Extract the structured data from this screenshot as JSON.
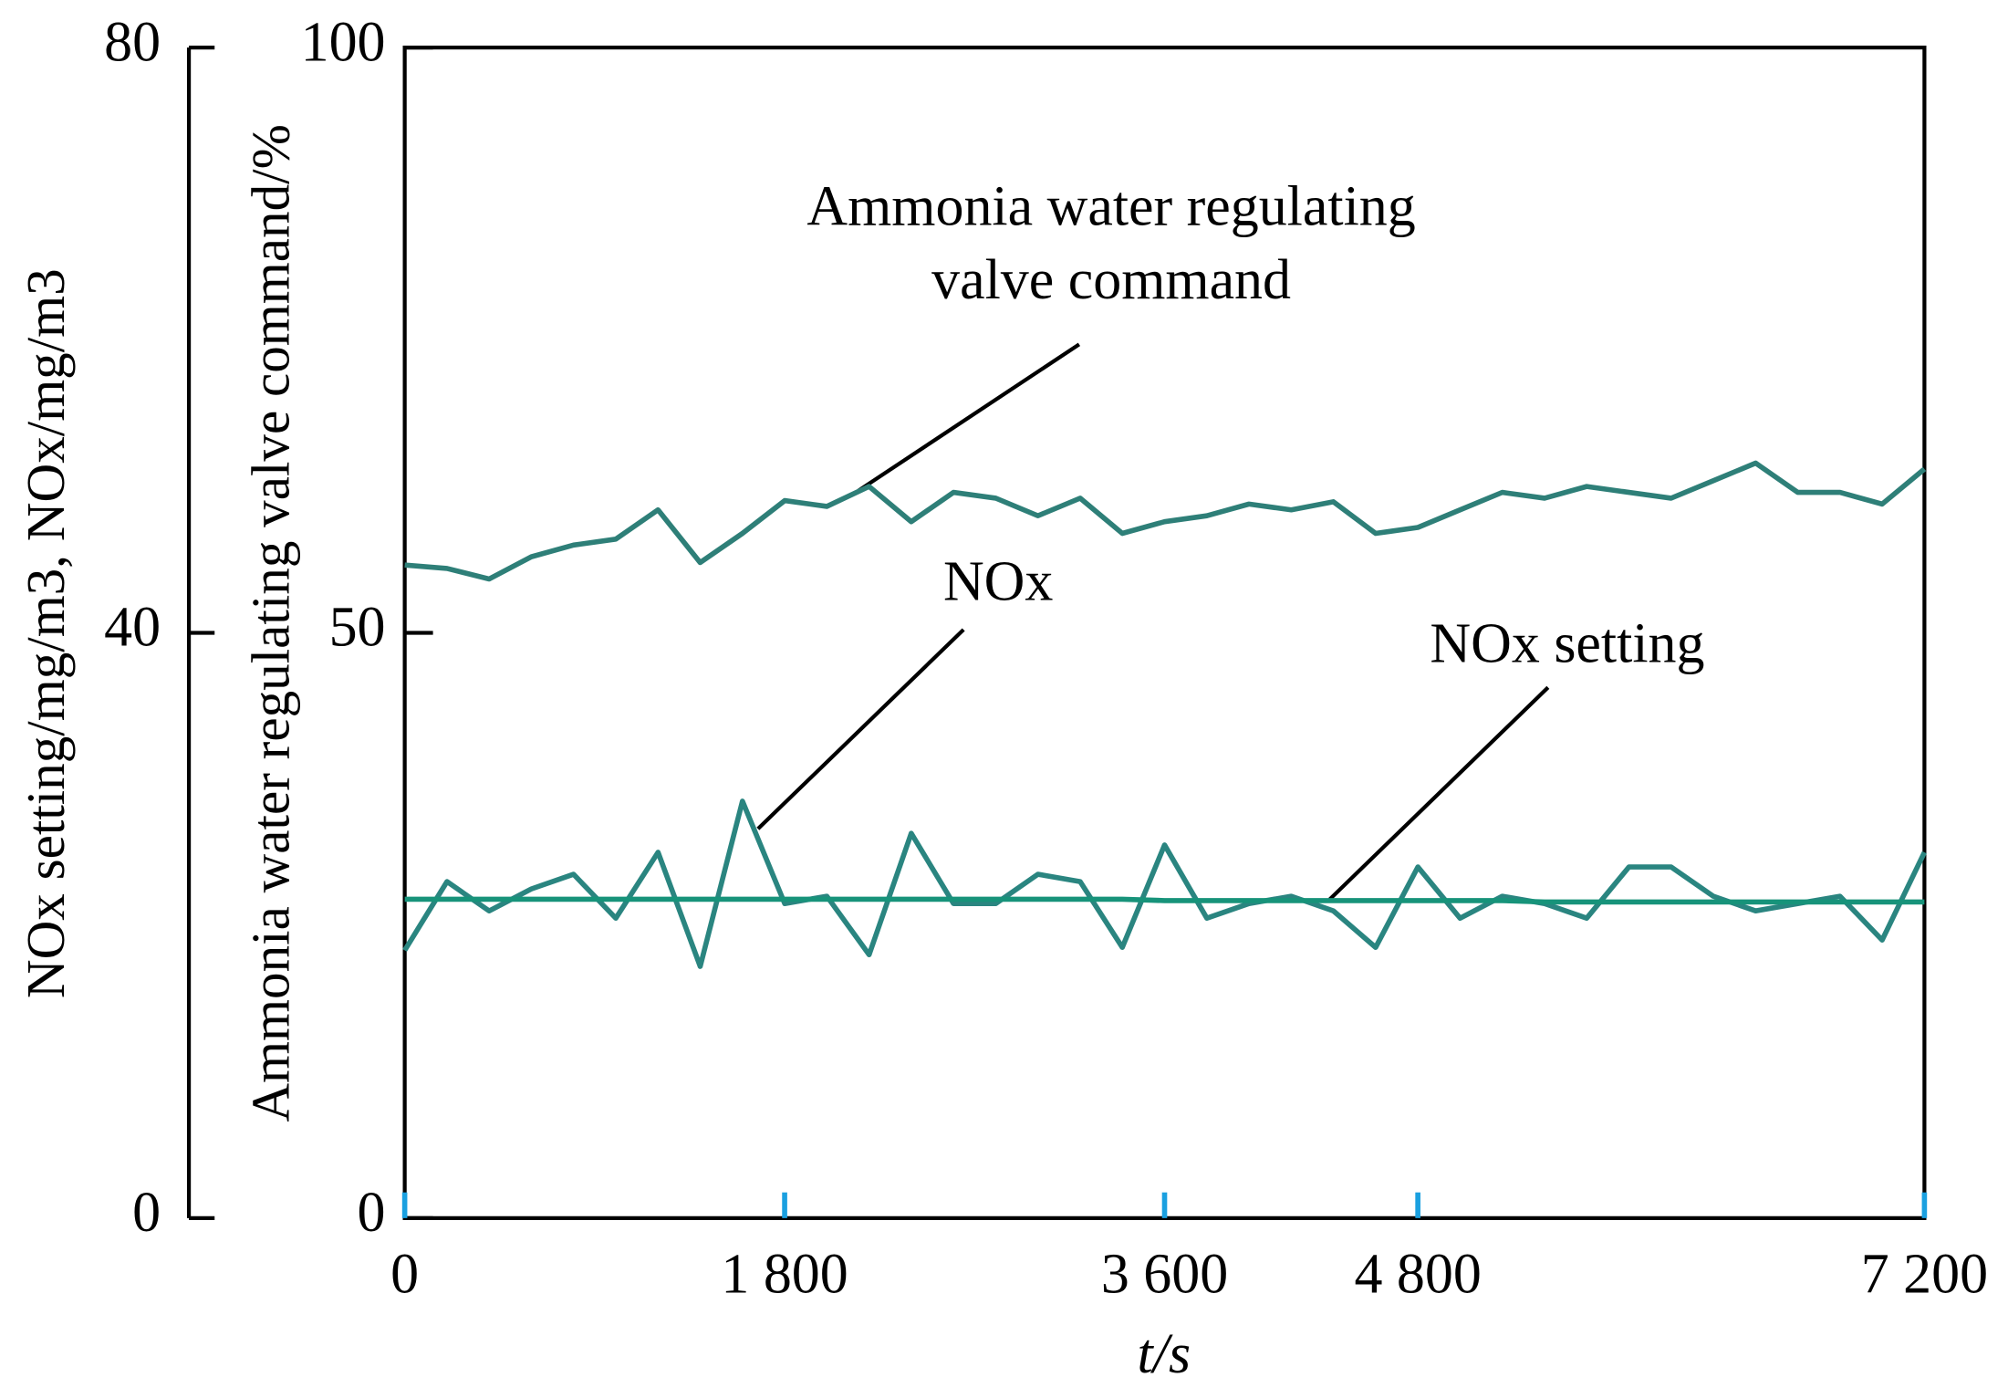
{
  "chart_data": {
    "type": "line",
    "x_label": "t/s",
    "y_label": "NOx setting/mg/m3, NOx/mg/m3",
    "y2_label": "Ammonia water regulating valve command/%",
    "x": [
      0,
      200,
      400,
      600,
      800,
      1000,
      1200,
      1400,
      1600,
      1800,
      2000,
      2200,
      2400,
      2600,
      2800,
      3000,
      3200,
      3400,
      3600,
      3800,
      4000,
      4200,
      4400,
      4600,
      4800,
      5000,
      5200,
      5400,
      5600,
      5800,
      6000,
      6200,
      6400,
      6600,
      6800,
      7000,
      7200
    ],
    "xlim": [
      0,
      7200
    ],
    "xticks": [
      0,
      {
        "value": 1800,
        "label": "1 800"
      },
      {
        "value": 3600,
        "label": "3 600"
      },
      {
        "value": 4800,
        "label": "4 800"
      },
      {
        "value": 7200,
        "label": "7 200"
      }
    ],
    "ylim": [
      0,
      80
    ],
    "yticks": [
      0,
      40,
      80
    ],
    "y2lim": [
      0,
      100
    ],
    "y2ticks": [
      0,
      50,
      100
    ],
    "series": [
      {
        "name": "Ammonia water regulating valve command",
        "color": "#2e7f78",
        "axis": "y2",
        "values": [
          55.8,
          55.5,
          54.6,
          56.5,
          57.5,
          58.0,
          60.5,
          56.0,
          58.5,
          61.3,
          60.8,
          62.5,
          59.5,
          62.0,
          61.5,
          60.0,
          61.5,
          58.5,
          59.5,
          60.0,
          61.0,
          60.5,
          61.2,
          58.5,
          59.0,
          60.5,
          62.0,
          61.5,
          62.5,
          62.0,
          61.5,
          63.0,
          64.5,
          62.0,
          62.0,
          61.0,
          64.0
        ]
      },
      {
        "name": "NOx",
        "color": "#2a8580",
        "values": [
          18.3,
          23,
          21,
          22.5,
          23.5,
          20.5,
          25,
          17.2,
          28.5,
          21.5,
          22,
          18,
          26.3,
          21.5,
          21.5,
          23.5,
          23,
          18.5,
          25.5,
          20.5,
          21.5,
          22,
          21,
          18.5,
          24,
          20.5,
          22,
          21.5,
          20.5,
          24,
          24,
          22,
          21,
          21.5,
          22,
          19,
          25
        ]
      },
      {
        "name": "NOx setting",
        "color": "#17937a",
        "values": [
          21.8,
          21.8,
          21.8,
          21.8,
          21.8,
          21.8,
          21.8,
          21.8,
          21.8,
          21.8,
          21.8,
          21.8,
          21.8,
          21.8,
          21.8,
          21.8,
          21.8,
          21.8,
          21.7,
          21.7,
          21.7,
          21.7,
          21.7,
          21.7,
          21.7,
          21.7,
          21.7,
          21.6,
          21.6,
          21.6,
          21.6,
          21.6,
          21.6,
          21.6,
          21.6,
          21.6,
          21.6
        ]
      }
    ],
    "annotations": [
      "Ammonia water regulating",
      "valve command",
      "NOx",
      "NOx setting"
    ]
  }
}
